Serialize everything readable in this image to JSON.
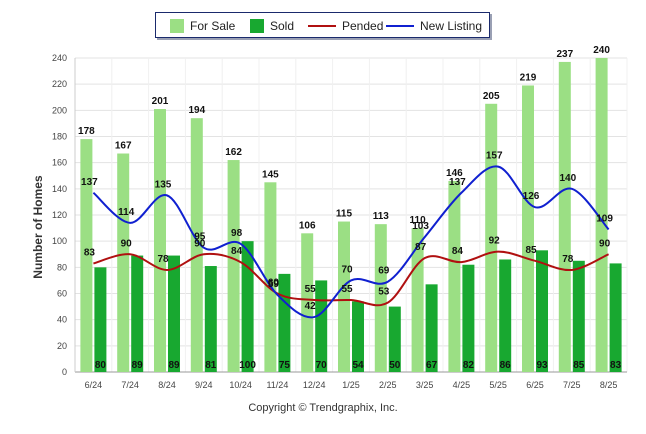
{
  "chart_data": {
    "type": "bar",
    "categories": [
      "6/24",
      "7/24",
      "8/24",
      "9/24",
      "10/24",
      "11/24",
      "12/24",
      "1/25",
      "2/25",
      "3/25",
      "4/25",
      "5/25",
      "6/25",
      "7/25",
      "8/25"
    ],
    "series": [
      {
        "name": "For Sale",
        "type": "bar",
        "color": "#9bdf84",
        "values": [
          178,
          167,
          201,
          194,
          162,
          145,
          106,
          115,
          113,
          110,
          146,
          205,
          219,
          237,
          240
        ]
      },
      {
        "name": "Sold",
        "type": "bar",
        "color": "#18a830",
        "values": [
          80,
          89,
          89,
          81,
          100,
          75,
          70,
          54,
          50,
          67,
          82,
          86,
          93,
          85,
          83
        ]
      },
      {
        "name": "Pended",
        "type": "line",
        "color": "#b01010",
        "values": [
          83,
          90,
          78,
          90,
          84,
          60,
          55,
          55,
          53,
          87,
          84,
          92,
          85,
          78,
          90
        ]
      },
      {
        "name": "New Listing",
        "type": "line",
        "color": "#1020d0",
        "values": [
          137,
          114,
          135,
          95,
          98,
          59,
          42,
          70,
          69,
          103,
          137,
          157,
          126,
          140,
          109
        ]
      }
    ],
    "xlabel": "",
    "ylabel": "Number of Homes",
    "ylim": [
      0,
      240
    ],
    "yticks": [
      0,
      20,
      40,
      60,
      80,
      100,
      120,
      140,
      160,
      180,
      200,
      220,
      240
    ],
    "grid": true,
    "legend": "top-center"
  },
  "footer": {
    "copyright": "Copyright © Trendgraphix, Inc."
  }
}
